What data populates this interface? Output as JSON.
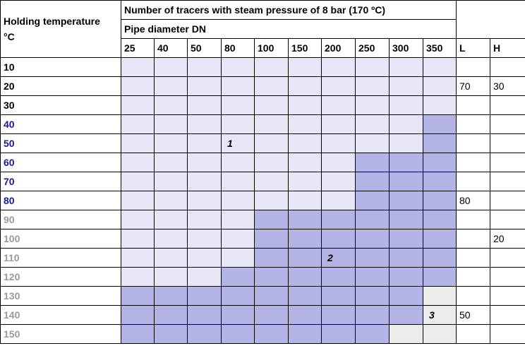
{
  "header": {
    "holding_label_line1": "Holding temperature",
    "holding_label_line2": "°C",
    "title": "Number of tracers with steam pressure of 8 bar (170 ºC)",
    "subtitle": "Pipe diameter DN",
    "columns": [
      "25",
      "40",
      "50",
      "80",
      "100",
      "150",
      "200",
      "250",
      "300",
      "350",
      "L",
      "H"
    ]
  },
  "colors": {
    "light": "#e6e6f7",
    "dark": "#b3b3e6",
    "gray": "#ececec",
    "temp_black": "#000000",
    "temp_blue": "#1a1a8c",
    "temp_gray": "#9a9a9a"
  },
  "rows": [
    {
      "temp": "10",
      "tone": "black",
      "cells": [
        "l",
        "l",
        "l",
        "l",
        "l",
        "l",
        "l",
        "l",
        "l",
        "l"
      ],
      "L": "",
      "H": ""
    },
    {
      "temp": "20",
      "tone": "black",
      "cells": [
        "l",
        "l",
        "l",
        "l",
        "l",
        "l",
        "l",
        "l",
        "l",
        "l"
      ],
      "L": "70",
      "H": "30"
    },
    {
      "temp": "30",
      "tone": "black",
      "cells": [
        "l",
        "l",
        "l",
        "l",
        "l",
        "l",
        "l",
        "l",
        "l",
        "l"
      ],
      "L": "",
      "H": ""
    },
    {
      "temp": "40",
      "tone": "blue",
      "cells": [
        "l",
        "l",
        "l",
        "l",
        "l",
        "l",
        "l",
        "l",
        "l",
        "d"
      ],
      "L": "",
      "H": ""
    },
    {
      "temp": "50",
      "tone": "blue",
      "cells": [
        "l",
        "l",
        "l",
        "l",
        "l",
        "l",
        "l",
        "l",
        "l",
        "d"
      ],
      "L": "",
      "H": "",
      "marks": {
        "3": "1"
      }
    },
    {
      "temp": "60",
      "tone": "blue",
      "cells": [
        "l",
        "l",
        "l",
        "l",
        "l",
        "l",
        "l",
        "d",
        "d",
        "d"
      ],
      "L": "",
      "H": ""
    },
    {
      "temp": "70",
      "tone": "blue",
      "cells": [
        "l",
        "l",
        "l",
        "l",
        "l",
        "l",
        "l",
        "d",
        "d",
        "d"
      ],
      "L": "",
      "H": ""
    },
    {
      "temp": "80",
      "tone": "blue",
      "cells": [
        "l",
        "l",
        "l",
        "l",
        "l",
        "l",
        "l",
        "d",
        "d",
        "d"
      ],
      "L": "80",
      "H": ""
    },
    {
      "temp": "90",
      "tone": "gray",
      "cells": [
        "l",
        "l",
        "l",
        "l",
        "d",
        "d",
        "d",
        "d",
        "d",
        "d"
      ],
      "L": "",
      "H": ""
    },
    {
      "temp": "100",
      "tone": "gray",
      "cells": [
        "l",
        "l",
        "l",
        "l",
        "d",
        "d",
        "d",
        "d",
        "d",
        "d"
      ],
      "L": "",
      "H": "20"
    },
    {
      "temp": "110",
      "tone": "gray",
      "cells": [
        "l",
        "l",
        "l",
        "l",
        "d",
        "d",
        "d",
        "d",
        "d",
        "d"
      ],
      "L": "",
      "H": "",
      "marks": {
        "6": "2"
      }
    },
    {
      "temp": "120",
      "tone": "gray",
      "cells": [
        "l",
        "l",
        "l",
        "d",
        "d",
        "d",
        "d",
        "d",
        "d",
        "d"
      ],
      "L": "",
      "H": ""
    },
    {
      "temp": "130",
      "tone": "gray",
      "cells": [
        "d",
        "d",
        "d",
        "d",
        "d",
        "d",
        "d",
        "d",
        "d",
        "g"
      ],
      "L": "",
      "H": ""
    },
    {
      "temp": "140",
      "tone": "gray",
      "cells": [
        "d",
        "d",
        "d",
        "d",
        "d",
        "d",
        "d",
        "d",
        "d",
        "g"
      ],
      "L": "50",
      "H": "",
      "marks": {
        "9": "3"
      }
    },
    {
      "temp": "150",
      "tone": "gray",
      "cells": [
        "d",
        "d",
        "d",
        "d",
        "d",
        "d",
        "d",
        "d",
        "g",
        "g"
      ],
      "L": "",
      "H": ""
    }
  ]
}
